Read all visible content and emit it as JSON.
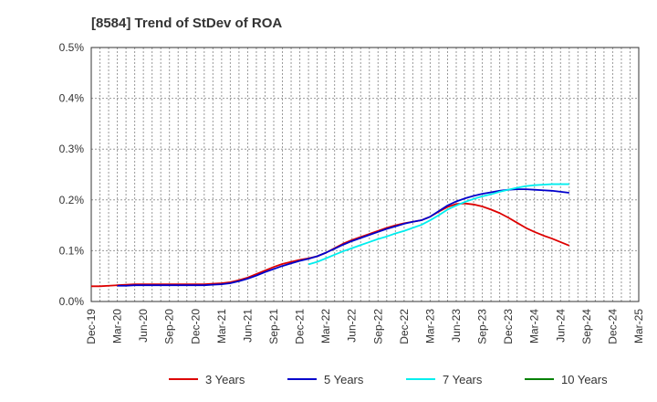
{
  "chart_data": {
    "type": "line",
    "title": "[8584]  Trend of StDev of ROA",
    "xlabel": "",
    "ylabel": "",
    "ylim": [
      0,
      0.5
    ],
    "y_ticks": [
      "0.0%",
      "0.1%",
      "0.2%",
      "0.3%",
      "0.4%",
      "0.5%"
    ],
    "x_tick_labels": [
      "Dec-19",
      "Mar-20",
      "Jun-20",
      "Sep-20",
      "Dec-20",
      "Mar-21",
      "Jun-21",
      "Sep-21",
      "Dec-21",
      "Mar-22",
      "Jun-22",
      "Sep-22",
      "Dec-22",
      "Mar-23",
      "Jun-23",
      "Sep-23",
      "Dec-23",
      "Mar-24",
      "Jun-24",
      "Sep-24",
      "Dec-24",
      "Mar-25"
    ],
    "grid": true,
    "legend_position": "bottom",
    "series": [
      {
        "name": "3 Years",
        "color": "#dd0000",
        "values": [
          0.03,
          0.03,
          0.031,
          0.032,
          0.033,
          0.034,
          0.034,
          0.034,
          0.034,
          0.034,
          0.034,
          0.034,
          0.034,
          0.034,
          0.035,
          0.036,
          0.038,
          0.042,
          0.047,
          0.054,
          0.061,
          0.068,
          0.074,
          0.078,
          0.082,
          0.085,
          0.089,
          0.096,
          0.105,
          0.114,
          0.121,
          0.127,
          0.133,
          0.139,
          0.145,
          0.15,
          0.154,
          0.157,
          0.16,
          0.167,
          0.177,
          0.186,
          0.192,
          0.193,
          0.191,
          0.187,
          0.181,
          0.174,
          0.165,
          0.155,
          0.145,
          0.137,
          0.13,
          0.124,
          0.117,
          0.11
        ]
      },
      {
        "name": "5 Years",
        "color": "#0000cc",
        "values": [
          null,
          null,
          null,
          0.031,
          0.031,
          0.032,
          0.032,
          0.032,
          0.032,
          0.032,
          0.032,
          0.032,
          0.032,
          0.032,
          0.033,
          0.034,
          0.036,
          0.04,
          0.045,
          0.051,
          0.058,
          0.064,
          0.07,
          0.075,
          0.08,
          0.084,
          0.089,
          0.096,
          0.104,
          0.112,
          0.119,
          0.125,
          0.131,
          0.137,
          0.143,
          0.148,
          0.153,
          0.157,
          0.16,
          0.167,
          0.178,
          0.189,
          0.197,
          0.203,
          0.208,
          0.212,
          0.215,
          0.218,
          0.22,
          0.221,
          0.221,
          0.22,
          0.219,
          0.218,
          0.216,
          0.214
        ]
      },
      {
        "name": "7 Years",
        "color": "#00eeee",
        "values": [
          null,
          null,
          null,
          null,
          null,
          null,
          null,
          null,
          null,
          null,
          null,
          null,
          null,
          null,
          null,
          null,
          null,
          null,
          null,
          null,
          null,
          null,
          null,
          null,
          null,
          0.073,
          0.078,
          0.085,
          0.092,
          0.099,
          0.105,
          0.111,
          0.117,
          0.123,
          0.128,
          0.134,
          0.139,
          0.145,
          0.151,
          0.16,
          0.17,
          0.181,
          0.189,
          0.196,
          0.202,
          0.207,
          0.211,
          0.216,
          0.22,
          0.224,
          0.227,
          0.229,
          0.23,
          0.231,
          0.231,
          0.231
        ]
      },
      {
        "name": "10 Years",
        "color": "#008000",
        "values": []
      }
    ]
  }
}
